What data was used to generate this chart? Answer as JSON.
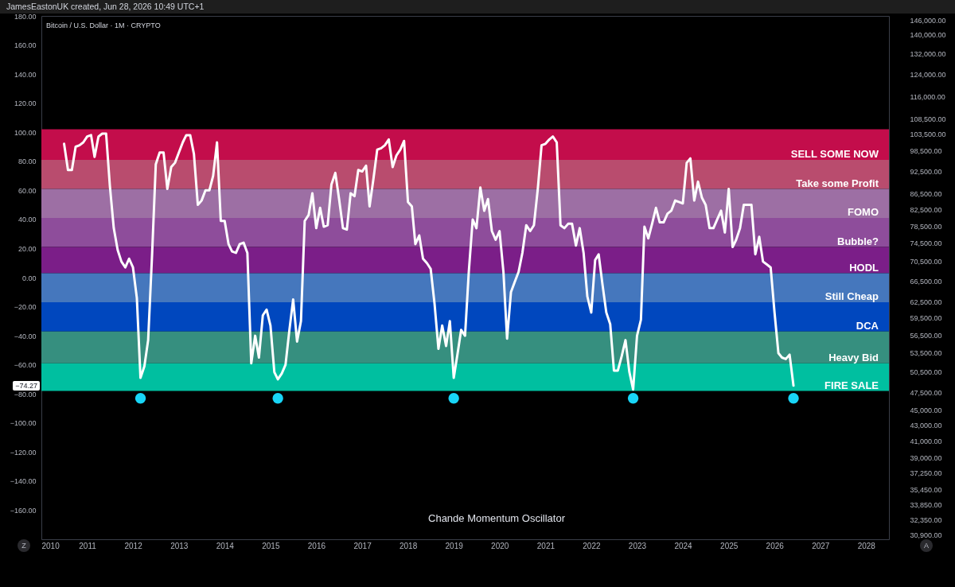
{
  "chart_data": {
    "type": "line",
    "title": "Bitcoin / U.S. Dollar · 1M · CRYPTO",
    "annotations": [
      "JamesEastonUK created, Jun 28, 2026 10:49 UTC+1",
      "Chande Momentum Oscillator",
      "Z",
      "A",
      {
        "text": "−74.27",
        "y": -74.27
      }
    ],
    "xlim": [
      "2010",
      "2028-07"
    ],
    "xticks": [
      "2010",
      "2011",
      "2012",
      "2013",
      "2014",
      "2015",
      "2016",
      "2017",
      "2018",
      "2019",
      "2020",
      "2021",
      "2022",
      "2023",
      "2024",
      "2025",
      "2026",
      "2027",
      "2028"
    ],
    "ylim": [
      -180,
      180
    ],
    "yticks": [
      {
        "value": 180,
        "label": "180.00"
      },
      {
        "value": 160,
        "label": "160.00"
      },
      {
        "value": 140,
        "label": "140.00"
      },
      {
        "value": 120,
        "label": "120.00"
      },
      {
        "value": 100,
        "label": "100.00"
      },
      {
        "value": 80,
        "label": "80.00"
      },
      {
        "value": 60,
        "label": "60.00"
      },
      {
        "value": 40,
        "label": "40.00"
      },
      {
        "value": 20,
        "label": "20.00"
      },
      {
        "value": 0,
        "label": "0.00"
      },
      {
        "value": -20,
        "label": "−20.00"
      },
      {
        "value": -40,
        "label": "−40.00"
      },
      {
        "value": -60,
        "label": "−60.00"
      },
      {
        "value": -80,
        "label": "−80.00"
      },
      {
        "value": -100,
        "label": "−100.00"
      },
      {
        "value": -120,
        "label": "−120.00"
      },
      {
        "value": -140,
        "label": "−140.00"
      },
      {
        "value": -160,
        "label": "−160.00"
      }
    ],
    "y2lim": [
      30500,
      148000
    ],
    "log": "y2",
    "y2ticks": [
      {
        "value": 146000,
        "label": "146,000.00"
      },
      {
        "value": 140000,
        "label": "140,000.00"
      },
      {
        "value": 132000,
        "label": "132,000.00"
      },
      {
        "value": 124000,
        "label": "124,000.00"
      },
      {
        "value": 116000,
        "label": "116,000.00"
      },
      {
        "value": 108500,
        "label": "108,500.00"
      },
      {
        "value": 103500,
        "label": "103,500.00"
      },
      {
        "value": 98500,
        "label": "98,500.00"
      },
      {
        "value": 92500,
        "label": "92,500.00"
      },
      {
        "value": 86500,
        "label": "86,500.00"
      },
      {
        "value": 82500,
        "label": "82,500.00"
      },
      {
        "value": 78500,
        "label": "78,500.00"
      },
      {
        "value": 74500,
        "label": "74,500.00"
      },
      {
        "value": 70500,
        "label": "70,500.00"
      },
      {
        "value": 66500,
        "label": "66,500.00"
      },
      {
        "value": 62500,
        "label": "62,500.00"
      },
      {
        "value": 59500,
        "label": "59,500.00"
      },
      {
        "value": 56500,
        "label": "56,500.00"
      },
      {
        "value": 53500,
        "label": "53,500.00"
      },
      {
        "value": 50500,
        "label": "50,500.00"
      },
      {
        "value": 47500,
        "label": "47,500.00"
      },
      {
        "value": 45000,
        "label": "45,000.00"
      },
      {
        "value": 43000,
        "label": "43,000.00"
      },
      {
        "value": 41000,
        "label": "41,000.00"
      },
      {
        "value": 39000,
        "label": "39,000.00"
      },
      {
        "value": 37250,
        "label": "37,250.00"
      },
      {
        "value": 35450,
        "label": "35,450.00"
      },
      {
        "value": 33850,
        "label": "33,850.00"
      },
      {
        "value": 32350,
        "label": "32,350.00"
      },
      {
        "value": 30900,
        "label": "30,900.00"
      }
    ],
    "bands": [
      {
        "axis": "y",
        "from": 81,
        "to": 102,
        "label": "SELL SOME NOW",
        "color": "#c30d4b"
      },
      {
        "axis": "y",
        "from": 61,
        "to": 81,
        "label": "Take some Profit",
        "color": "#b94c6e"
      },
      {
        "axis": "y",
        "from": 41,
        "to": 61,
        "label": "FOMO",
        "color": "#9d6fa4"
      },
      {
        "axis": "y",
        "from": 21,
        "to": 41,
        "label": "Bubble?",
        "color": "#8e4d9b"
      },
      {
        "axis": "y",
        "from": 3,
        "to": 21,
        "label": "HODL",
        "color": "#7b1e88"
      },
      {
        "axis": "y",
        "from": -17,
        "to": 3,
        "label": "Still Cheap",
        "color": "#4577bd"
      },
      {
        "axis": "y",
        "from": -37,
        "to": -17,
        "label": "DCA",
        "color": "#0047be"
      },
      {
        "axis": "y",
        "from": -59,
        "to": -37,
        "label": "Heavy Bid",
        "color": "#368f7f"
      },
      {
        "axis": "y",
        "from": -78,
        "to": -59,
        "label": "FIRE SALE",
        "color": "#00bfa0"
      }
    ],
    "series": [
      {
        "type": "line",
        "color": "#ffffff",
        "x": [
          "2010-07",
          "2010-08",
          "2010-09",
          "2010-10",
          "2010-11",
          "2010-12",
          "2011-01",
          "2011-02",
          "2011-03",
          "2011-04",
          "2011-05",
          "2011-06",
          "2011-07",
          "2011-08",
          "2011-09",
          "2011-10",
          "2011-11",
          "2011-12",
          "2012-01",
          "2012-02",
          "2012-03",
          "2012-04",
          "2012-05",
          "2012-06",
          "2012-07",
          "2012-08",
          "2012-09",
          "2012-10",
          "2012-11",
          "2012-12",
          "2013-01",
          "2013-02",
          "2013-03",
          "2013-04",
          "2013-05",
          "2013-06",
          "2013-07",
          "2013-08",
          "2013-09",
          "2013-10",
          "2013-11",
          "2013-12",
          "2014-01",
          "2014-02",
          "2014-03",
          "2014-04",
          "2014-05",
          "2014-06",
          "2014-07",
          "2014-08",
          "2014-09",
          "2014-10",
          "2014-11",
          "2014-12",
          "2015-01",
          "2015-02",
          "2015-03",
          "2015-04",
          "2015-05",
          "2015-06",
          "2015-07",
          "2015-08",
          "2015-09",
          "2015-10",
          "2015-11",
          "2015-12",
          "2016-01",
          "2016-02",
          "2016-03",
          "2016-04",
          "2016-05",
          "2016-06",
          "2016-07",
          "2016-08",
          "2016-09",
          "2016-10",
          "2016-11",
          "2016-12",
          "2017-01",
          "2017-02",
          "2017-03",
          "2017-04",
          "2017-05",
          "2017-06",
          "2017-07",
          "2017-08",
          "2017-09",
          "2017-10",
          "2017-11",
          "2017-12",
          "2018-01",
          "2018-02",
          "2018-03",
          "2018-04",
          "2018-05",
          "2018-06",
          "2018-07",
          "2018-08",
          "2018-09",
          "2018-10",
          "2018-11",
          "2018-12",
          "2019-01",
          "2019-02",
          "2019-03",
          "2019-04",
          "2019-05",
          "2019-06",
          "2019-07",
          "2019-08",
          "2019-09",
          "2019-10",
          "2019-11",
          "2019-12",
          "2020-01",
          "2020-02",
          "2020-03",
          "2020-04",
          "2020-05",
          "2020-06",
          "2020-07",
          "2020-08",
          "2020-09",
          "2020-10",
          "2020-11",
          "2020-12",
          "2021-01",
          "2021-02",
          "2021-03",
          "2021-04",
          "2021-05",
          "2021-06",
          "2021-07",
          "2021-08",
          "2021-09",
          "2021-10",
          "2021-11",
          "2021-12",
          "2022-01",
          "2022-02",
          "2022-03",
          "2022-04",
          "2022-05",
          "2022-06",
          "2022-07",
          "2022-08",
          "2022-09",
          "2022-10",
          "2022-11",
          "2022-12",
          "2023-01",
          "2023-02",
          "2023-03",
          "2023-04",
          "2023-05",
          "2023-06",
          "2023-07",
          "2023-08",
          "2023-09",
          "2023-10",
          "2023-11",
          "2023-12",
          "2024-01",
          "2024-02",
          "2024-03",
          "2024-04",
          "2024-05",
          "2024-06",
          "2024-07",
          "2024-08",
          "2024-09",
          "2024-10",
          "2024-11",
          "2024-12",
          "2025-01",
          "2025-02",
          "2025-03",
          "2025-04",
          "2025-05",
          "2025-06",
          "2025-07",
          "2025-08",
          "2025-09",
          "2025-10",
          "2025-11",
          "2025-12",
          "2026-01",
          "2026-02",
          "2026-03",
          "2026-04",
          "2026-05",
          "2026-06"
        ],
        "values": [
          92,
          74,
          74,
          90,
          91,
          93,
          97,
          98,
          83,
          97,
          99,
          99,
          63,
          34,
          19,
          11,
          7,
          13,
          7,
          -14,
          -69,
          -61,
          -43,
          15,
          78,
          86,
          86,
          61,
          76,
          79,
          86,
          93,
          98,
          98,
          85,
          50,
          53,
          60,
          60,
          70,
          93,
          39,
          39,
          23,
          18,
          17,
          23,
          24,
          17,
          -59,
          -40,
          -55,
          -26,
          -22,
          -33,
          -65,
          -70,
          -66,
          -60,
          -36,
          -15,
          -44,
          -30,
          39,
          43,
          58,
          34,
          48,
          35,
          36,
          64,
          72,
          54,
          34,
          33,
          58,
          56,
          74,
          73,
          77,
          49,
          68,
          88,
          89,
          91,
          95,
          76,
          84,
          88,
          94,
          52,
          49,
          23,
          29,
          13,
          10,
          6,
          -18,
          -49,
          -33,
          -47,
          -30,
          -69,
          -52,
          -36,
          -40,
          4,
          40,
          34,
          62,
          46,
          54,
          32,
          26,
          32,
          4,
          -42,
          -10,
          -3,
          4,
          17,
          36,
          32,
          36,
          61,
          91,
          92,
          95,
          97,
          93,
          36,
          34,
          37,
          37,
          22,
          34,
          17,
          -13,
          -24,
          12,
          16,
          -5,
          -24,
          -32,
          -64,
          -64,
          -54,
          -43,
          -65,
          -77,
          -40,
          -29,
          35,
          27,
          37,
          48,
          38,
          38,
          44,
          46,
          53,
          52,
          51,
          79,
          82,
          53,
          66,
          55,
          50,
          34,
          34,
          40,
          46,
          31,
          61,
          21,
          26,
          34,
          50,
          50,
          50,
          16,
          28,
          11,
          9,
          7,
          -24,
          -52,
          -55,
          -56,
          -53,
          -74.27
        ]
      },
      {
        "type": "scatter",
        "color": "#18d5f7",
        "x": [
          "2012-03",
          "2015-03",
          "2019-01",
          "2022-12",
          "2026-06"
        ],
        "values": [
          -83,
          -83,
          -83,
          -83,
          -83
        ]
      }
    ]
  }
}
